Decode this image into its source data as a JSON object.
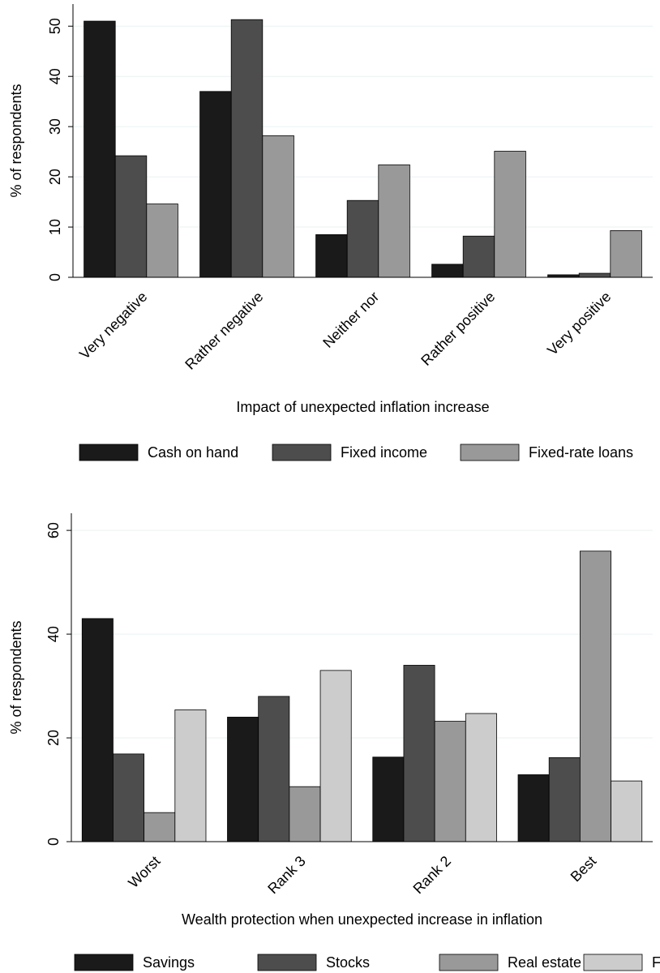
{
  "chart_data": [
    {
      "type": "bar",
      "xlabel": "Impact of unexpected inflation increase",
      "ylabel": "% of respondents",
      "categories": [
        "Very negative",
        "Rather negative",
        "Neither nor",
        "Rather positive",
        "Very positive"
      ],
      "series": [
        {
          "name": "Cash on hand",
          "color": "#1a1a1a",
          "values": [
            51,
            37,
            8.5,
            2.6,
            0.5
          ]
        },
        {
          "name": "Fixed income",
          "color": "#4d4d4d",
          "values": [
            24.2,
            51.3,
            15.3,
            8.2,
            0.8
          ]
        },
        {
          "name": "Fixed-rate loans",
          "color": "#999999",
          "values": [
            14.6,
            28.2,
            22.4,
            25.1,
            9.3
          ]
        }
      ],
      "ylim": [
        0,
        54.4
      ],
      "yticks": [
        0,
        10,
        20,
        30,
        40,
        50
      ],
      "grid": true
    },
    {
      "type": "bar",
      "xlabel": "Wealth protection when unexpected increase in inflation",
      "ylabel": "% of respondents",
      "categories": [
        "Worst",
        "Rank 3",
        "Rank 2",
        "Best"
      ],
      "series": [
        {
          "name": "Savings",
          "color": "#1a1a1a",
          "values": [
            43,
            24,
            16.3,
            12.9
          ]
        },
        {
          "name": "Stocks",
          "color": "#4d4d4d",
          "values": [
            16.9,
            28,
            34,
            16.2
          ]
        },
        {
          "name": "Real estate",
          "color": "#999999",
          "values": [
            5.6,
            10.6,
            23.2,
            56
          ]
        },
        {
          "name": "FR loans",
          "color": "#cccccc",
          "values": [
            25.4,
            33,
            24.7,
            11.7
          ]
        }
      ],
      "ylim": [
        0,
        63.3
      ],
      "yticks": [
        0,
        20,
        40,
        60
      ],
      "grid": true
    }
  ]
}
